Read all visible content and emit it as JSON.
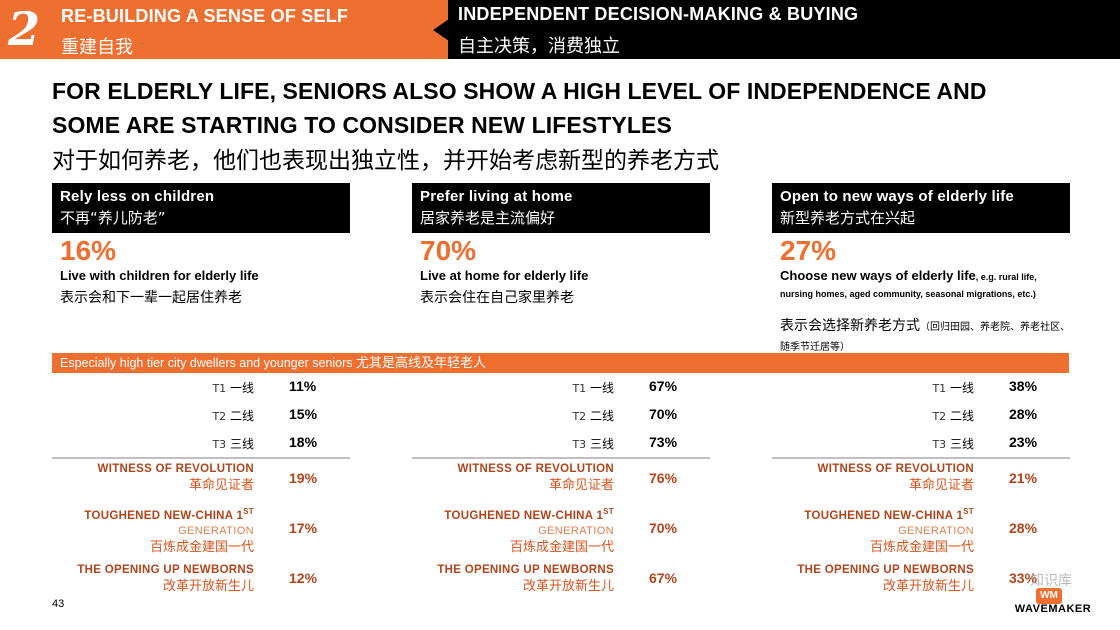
{
  "header": {
    "section_number": "2",
    "left_en": "RE-BUILDING A SENSE OF SELF",
    "left_cn": "重建自我",
    "right_en": "INDEPENDENT DECISION-MAKING & BUYING",
    "right_cn": "自主决策，消费独立"
  },
  "title": {
    "line1": "FOR ELDERLY LIFE, SENIORS ALSO SHOW A HIGH LEVEL OF INDEPENDENCE AND",
    "line2": "SOME ARE STARTING TO CONSIDER NEW LIFESTYLES",
    "cn": "对于如何养老，他们也表现出独立性，并开始考虑新型的养老方式"
  },
  "band": {
    "en": "Especially high tier city dwellers and younger seniors ",
    "cn": "尤其是高线及年轻老人"
  },
  "tier_labels": [
    {
      "code": "T1",
      "cn": " 一线"
    },
    {
      "code": "T2",
      "cn": " 二线"
    },
    {
      "code": "T3",
      "cn": " 三线"
    }
  ],
  "generations": {
    "g1_en": "WITNESS OF REVOLUTION",
    "g1_cn": "革命见证者",
    "g2_en": "TOUGHENED NEW-CHINA 1",
    "g2_sup": "ST",
    "g2_en2": "GENERATION",
    "g2_cn": "百炼成金建国一代",
    "g3_en": "THE OPENING UP NEWBORNS",
    "g3_cn": "改革开放新生儿"
  },
  "columns": [
    {
      "head_en": "Rely less on children",
      "head_cn": "不再“养儿防老”",
      "percent": "16%",
      "desc_en": "Live with children for elderly life",
      "desc_note": "",
      "desc_cn": "表示会和下一辈一起居住养老",
      "desc_cn_note": "",
      "tiers": [
        "11%",
        "15%",
        "18%"
      ],
      "gens": [
        "19%",
        "17%",
        "12%"
      ]
    },
    {
      "head_en": "Prefer living at home",
      "head_cn": "居家养老是主流偏好",
      "percent": "70%",
      "desc_en": "Live at home for elderly life",
      "desc_note": "",
      "desc_cn": "表示会住在自己家里养老",
      "desc_cn_note": "",
      "tiers": [
        "67%",
        "70%",
        "73%"
      ],
      "gens": [
        "76%",
        "70%",
        "67%"
      ]
    },
    {
      "head_en": "Open to new ways of elderly life",
      "head_cn": "新型养老方式在兴起",
      "percent": "27%",
      "desc_en": "Choose new ways of elderly life",
      "desc_note": ", e.g. rural life, nursing homes, aged community, seasonal migrations, etc.)",
      "desc_cn": "表示会选择新养老方式",
      "desc_cn_note": "（回归田园、养老院、养老社区、随季节迁居等）",
      "tiers": [
        "38%",
        "28%",
        "23%"
      ],
      "gens": [
        "21%",
        "28%",
        "33%"
      ]
    }
  ],
  "footer": {
    "page_number": "43",
    "logo_mark": "WM",
    "logo_text": "WAVEMAKER",
    "watermark": "知识库"
  }
}
